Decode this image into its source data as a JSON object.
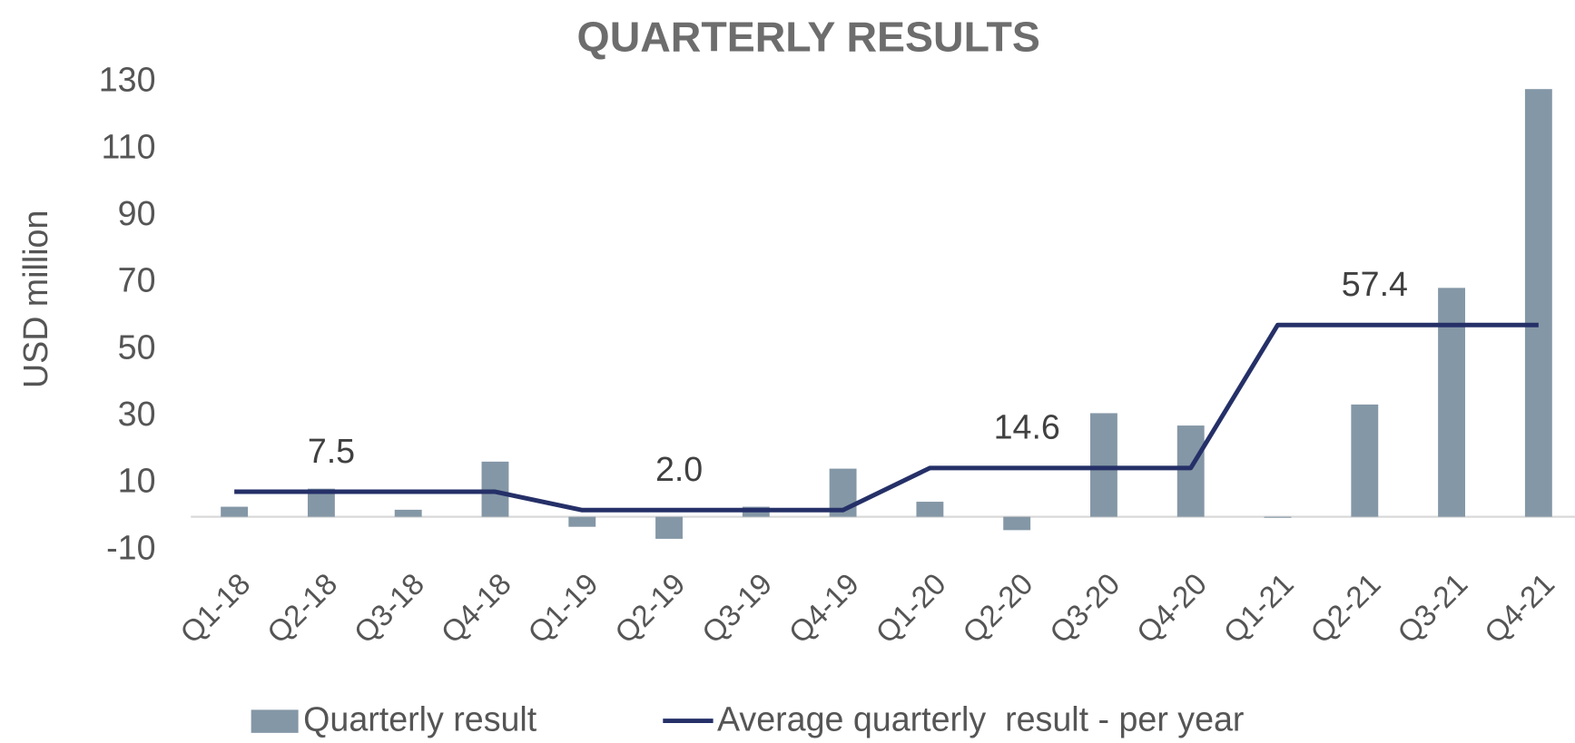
{
  "chart_data": {
    "type": "bar_line",
    "title": "QUARTERLY RESULTS",
    "y_label": "USD million",
    "categories": [
      "Q1-18",
      "Q2-18",
      "Q3-18",
      "Q4-18",
      "Q1-19",
      "Q2-19",
      "Q3-19",
      "Q4-19",
      "Q1-20",
      "Q2-20",
      "Q3-20",
      "Q4-20",
      "Q1-21",
      "Q2-21",
      "Q3-21",
      "Q4-21"
    ],
    "series": [
      {
        "name": "Quarterly result",
        "type": "bar",
        "color": "#8497a6",
        "values": [
          3.0,
          8.4,
          2.1,
          16.5,
          -3.0,
          -6.6,
          3.0,
          14.4,
          4.5,
          -4.0,
          31.0,
          27.3,
          -0.3,
          33.6,
          68.5,
          128.0
        ]
      },
      {
        "name": "Average quarterly  result - per year",
        "type": "line",
        "color": "#253068",
        "values": [
          7.5,
          7.5,
          7.5,
          7.5,
          2.0,
          2.0,
          2.0,
          2.0,
          14.6,
          14.6,
          14.6,
          14.6,
          57.4,
          57.4,
          57.4,
          57.4
        ],
        "value_labels": [
          null,
          "7.5",
          null,
          null,
          null,
          "2.0",
          null,
          null,
          null,
          "14.6",
          null,
          null,
          null,
          "57.4",
          null,
          null
        ]
      }
    ],
    "ylim": [
      -10,
      130
    ],
    "yticks": [
      -10,
      10,
      30,
      50,
      70,
      90,
      110,
      130
    ],
    "grid": false,
    "legend": "bottom"
  }
}
